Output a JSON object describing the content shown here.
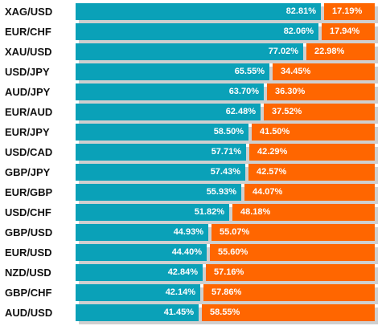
{
  "chart_data": {
    "type": "bar",
    "stacked": true,
    "orientation": "horizontal",
    "value_suffix": "%",
    "colors": {
      "long": "#0aa1b8",
      "short": "#ff6600",
      "shadow": "#cfcfcf"
    },
    "categories": [
      "XAG/USD",
      "EUR/CHF",
      "XAU/USD",
      "USD/JPY",
      "AUD/JPY",
      "EUR/AUD",
      "EUR/JPY",
      "USD/CAD",
      "GBP/JPY",
      "EUR/GBP",
      "USD/CHF",
      "GBP/USD",
      "EUR/USD",
      "NZD/USD",
      "GBP/CHF",
      "AUD/USD"
    ],
    "series": [
      {
        "values": [
          82.81,
          82.06,
          77.02,
          65.55,
          63.7,
          62.48,
          58.5,
          57.71,
          57.43,
          55.93,
          51.82,
          44.93,
          44.4,
          42.84,
          42.14,
          41.45
        ]
      },
      {
        "values": [
          17.19,
          17.94,
          22.98,
          34.45,
          36.3,
          37.52,
          41.5,
          42.29,
          42.57,
          44.07,
          48.18,
          55.07,
          55.6,
          57.16,
          57.86,
          58.55
        ]
      }
    ],
    "labels": {
      "long": [
        "82.81%",
        "82.06%",
        "77.02%",
        "65.55%",
        "63.70%",
        "62.48%",
        "58.50%",
        "57.71%",
        "57.43%",
        "55.93%",
        "51.82%",
        "44.93%",
        "44.40%",
        "42.84%",
        "42.14%",
        "41.45%"
      ],
      "short": [
        "17.19%",
        "17.94%",
        "22.98%",
        "34.45%",
        "36.30%",
        "37.52%",
        "41.50%",
        "42.29%",
        "42.57%",
        "44.07%",
        "48.18%",
        "55.07%",
        "55.60%",
        "57.16%",
        "57.86%",
        "58.55%"
      ]
    }
  }
}
